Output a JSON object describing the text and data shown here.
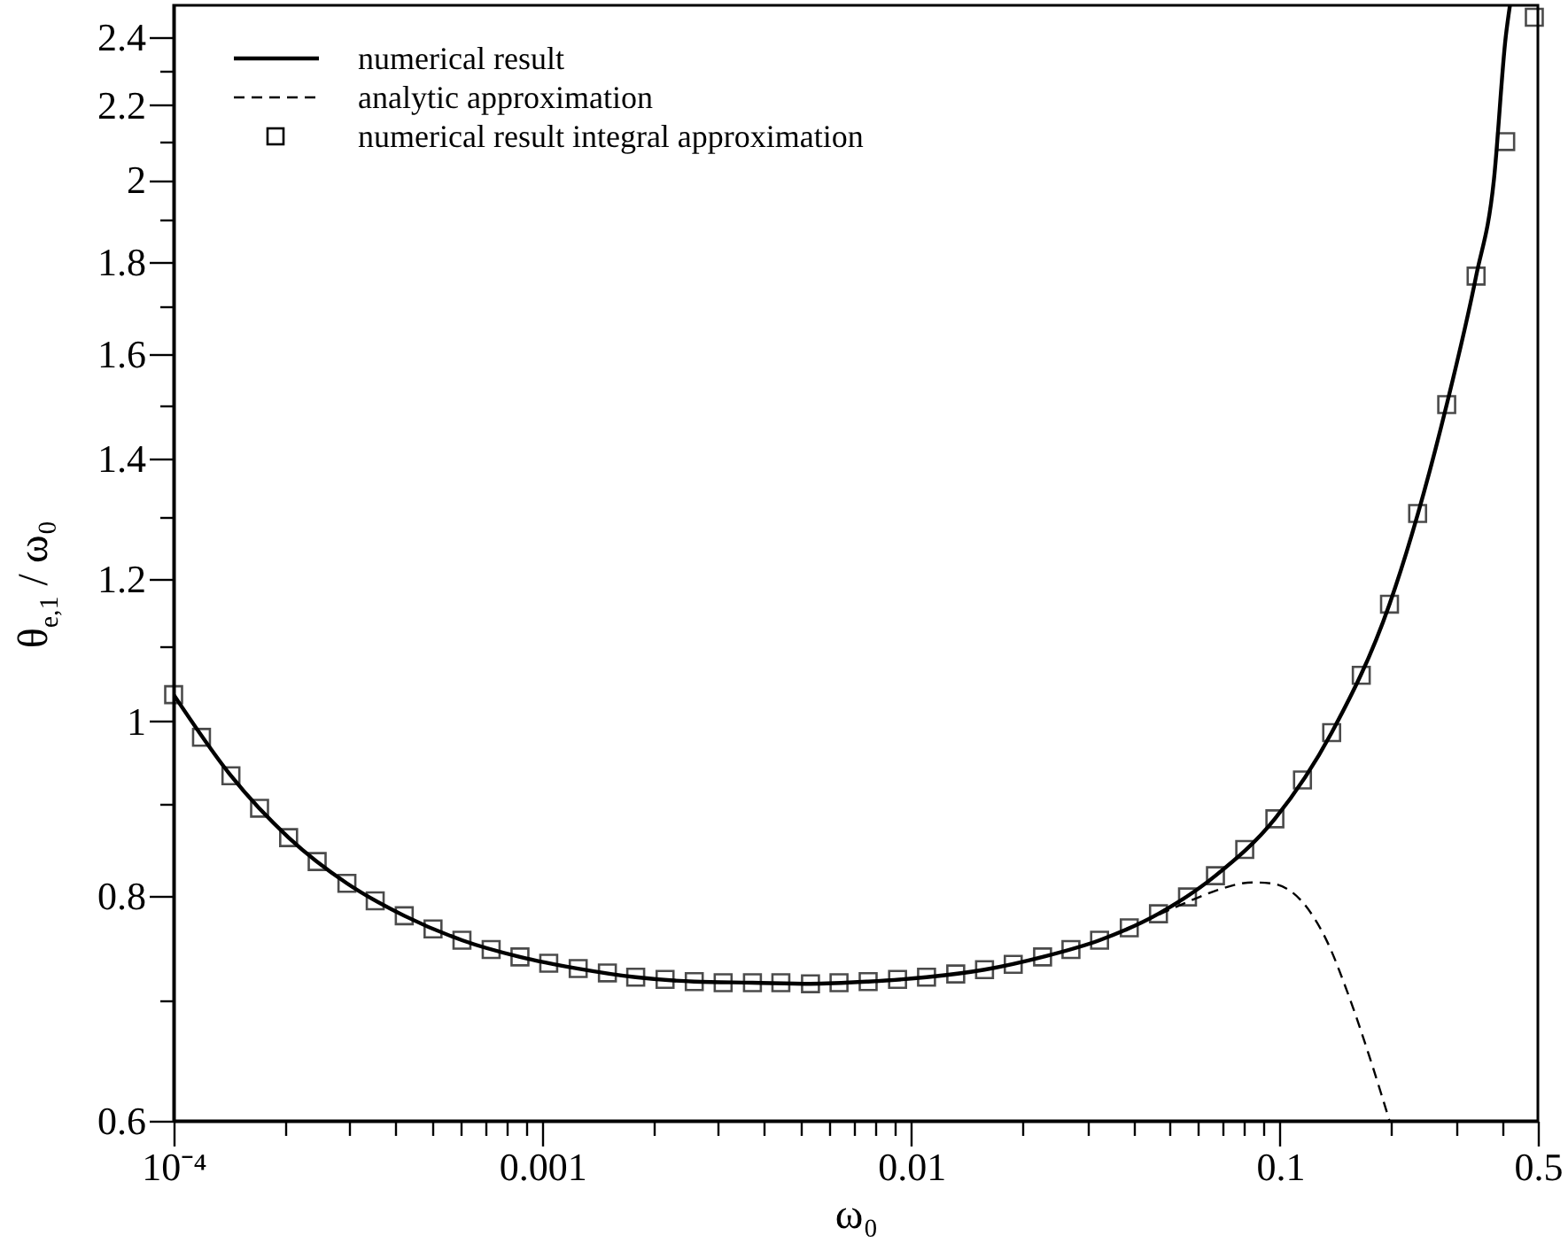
{
  "chart_data": {
    "type": "line",
    "xlabel": "ω₀",
    "ylabel": "θ$_{e,1}$ / ω₀",
    "log": "xy",
    "xlim": [
      0.0001,
      0.5
    ],
    "ylim": [
      0.6,
      2.5
    ],
    "xticks": [
      {
        "value": 0.0001,
        "label": "10⁻⁴"
      },
      {
        "value": 0.0002,
        "label": null
      },
      {
        "value": 0.0003,
        "label": null
      },
      {
        "value": 0.0004,
        "label": null
      },
      {
        "value": 0.0005,
        "label": null
      },
      {
        "value": 0.0006,
        "label": null
      },
      {
        "value": 0.0007,
        "label": null
      },
      {
        "value": 0.0008,
        "label": null
      },
      {
        "value": 0.0009,
        "label": null
      },
      0.001,
      {
        "value": 0.002,
        "label": null
      },
      {
        "value": 0.003,
        "label": null
      },
      {
        "value": 0.004,
        "label": null
      },
      {
        "value": 0.005,
        "label": null
      },
      {
        "value": 0.006,
        "label": null
      },
      {
        "value": 0.007,
        "label": null
      },
      {
        "value": 0.008,
        "label": null
      },
      {
        "value": 0.009,
        "label": null
      },
      0.01,
      {
        "value": 0.02,
        "label": null
      },
      {
        "value": 0.03,
        "label": null
      },
      {
        "value": 0.04,
        "label": null
      },
      {
        "value": 0.05,
        "label": null
      },
      {
        "value": 0.06,
        "label": null
      },
      {
        "value": 0.07,
        "label": null
      },
      {
        "value": 0.08,
        "label": null
      },
      {
        "value": 0.09,
        "label": null
      },
      0.1,
      {
        "value": 0.2,
        "label": null
      },
      {
        "value": 0.3,
        "label": null
      },
      {
        "value": 0.4,
        "label": null
      },
      0.5
    ],
    "yticks": [
      0.6,
      {
        "value": 0.7,
        "label": null
      },
      0.8,
      {
        "value": 0.9,
        "label": null
      },
      1,
      {
        "value": 1.1,
        "label": null
      },
      1.2,
      {
        "value": 1.3,
        "label": null
      },
      1.4,
      {
        "value": 1.5,
        "label": null
      },
      1.6,
      {
        "value": 1.7,
        "label": null
      },
      1.8,
      {
        "value": 1.9,
        "label": null
      },
      2,
      {
        "value": 2.1,
        "label": null
      },
      2.2,
      {
        "value": 2.3,
        "label": null
      },
      2.4
    ],
    "grid": false,
    "legend": "top left",
    "series": [
      {
        "name": "numerical result",
        "type": "line",
        "color": "#000000",
        "line_style": "solid",
        "x": [
          0.0001,
          0.000143,
          0.000205,
          0.000295,
          0.000422,
          0.000605,
          0.000869,
          0.00125,
          0.00179,
          0.00258,
          0.00371,
          0.00533,
          0.00764,
          0.011,
          0.0158,
          0.0227,
          0.0324,
          0.0468,
          0.0668,
          0.0968,
          0.138,
          0.198,
          0.283,
          0.34,
          0.38,
          0.409,
          0.42
        ],
        "values": [
          1.035,
          0.933,
          0.862,
          0.813,
          0.78,
          0.756,
          0.74,
          0.729,
          0.721,
          0.717,
          0.716,
          0.715,
          0.717,
          0.721,
          0.728,
          0.74,
          0.756,
          0.782,
          0.821,
          0.883,
          0.986,
          1.162,
          1.5,
          1.768,
          2.0,
          2.4,
          2.5
        ]
      },
      {
        "name": "analytic approximation",
        "type": "line",
        "color": "#000000",
        "line_style": "dashed",
        "x": [
          0.0001,
          0.000143,
          0.000205,
          0.000295,
          0.000422,
          0.000605,
          0.000869,
          0.00125,
          0.00179,
          0.00258,
          0.00371,
          0.00533,
          0.00764,
          0.011,
          0.0158,
          0.0227,
          0.0324,
          0.039,
          0.0468,
          0.0605,
          0.0676,
          0.0844,
          0.0943,
          0.1155,
          0.134,
          0.152,
          0.177,
          0.198
        ],
        "values": [
          1.035,
          0.933,
          0.862,
          0.813,
          0.78,
          0.756,
          0.74,
          0.729,
          0.721,
          0.717,
          0.716,
          0.715,
          0.717,
          0.721,
          0.728,
          0.74,
          0.756,
          0.768,
          0.781,
          0.799,
          0.806,
          0.814,
          0.813,
          0.793,
          0.755,
          0.708,
          0.646,
          0.6
        ]
      },
      {
        "name": "numerical result integral approximation",
        "type": "scatter",
        "color": "#000000",
        "marker": "square",
        "x": [
          0.0001,
          0.000119,
          0.000143,
          0.000171,
          0.000205,
          0.000245,
          0.000295,
          0.000352,
          0.000422,
          0.000505,
          0.000605,
          0.000726,
          0.000869,
          0.00104,
          0.00125,
          0.0015,
          0.00179,
          0.00215,
          0.00258,
          0.00309,
          0.00371,
          0.00443,
          0.00533,
          0.00637,
          0.00764,
          0.00918,
          0.011,
          0.0132,
          0.0158,
          0.0189,
          0.0227,
          0.0271,
          0.0324,
          0.039,
          0.0468,
          0.0561,
          0.0668,
          0.0802,
          0.0968,
          0.115,
          0.138,
          0.166,
          0.198,
          0.236,
          0.283,
          0.34,
          0.409,
          0.489
        ],
        "values": [
          1.035,
          0.98,
          0.933,
          0.895,
          0.862,
          0.836,
          0.813,
          0.795,
          0.78,
          0.767,
          0.756,
          0.747,
          0.74,
          0.734,
          0.729,
          0.725,
          0.721,
          0.719,
          0.717,
          0.716,
          0.716,
          0.716,
          0.715,
          0.716,
          0.717,
          0.719,
          0.721,
          0.724,
          0.728,
          0.733,
          0.74,
          0.747,
          0.756,
          0.768,
          0.782,
          0.799,
          0.821,
          0.849,
          0.883,
          0.928,
          0.986,
          1.061,
          1.162,
          1.305,
          1.5,
          1.768,
          2.1,
          2.462
        ]
      }
    ]
  }
}
